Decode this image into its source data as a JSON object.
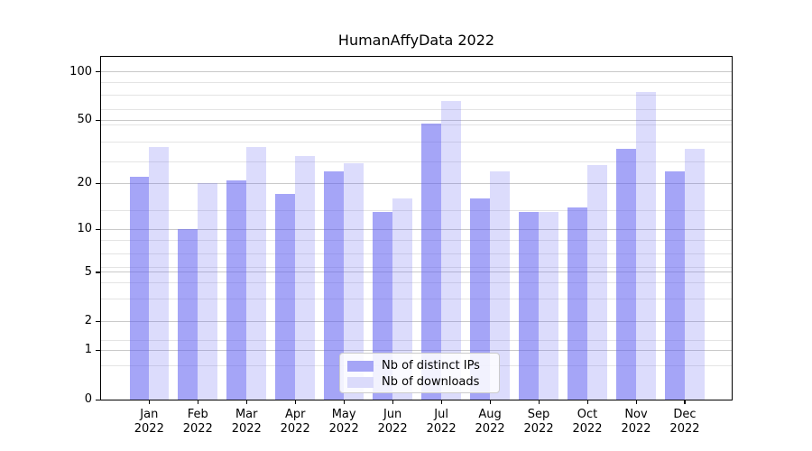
{
  "chart_data": {
    "type": "bar",
    "title": "HumanAffyData 2022",
    "x_categories": [
      "Jan",
      "Feb",
      "Mar",
      "Apr",
      "May",
      "Jun",
      "Jul",
      "Aug",
      "Sep",
      "Oct",
      "Nov",
      "Dec"
    ],
    "x_year_label": "2022",
    "series": [
      {
        "key": "distinct-ips",
        "name": "Nb of distinct IPs",
        "base_color_rgb": [
          95,
          95,
          240
        ],
        "alpha": 0.56,
        "legend_color": "#a5a5f6",
        "values": [
          22,
          10,
          21,
          17,
          24,
          13,
          48,
          16,
          13,
          14,
          33,
          24
        ]
      },
      {
        "key": "downloads",
        "name": "Nb of downloads",
        "base_color_rgb": [
          95,
          95,
          240
        ],
        "alpha": 0.22,
        "legend_color": "#dbdbfb",
        "values": [
          34,
          20,
          34,
          30,
          27,
          16,
          66,
          24,
          13,
          26,
          75,
          33
        ]
      }
    ],
    "y_scale": "log10(1+x)",
    "y_ticks": [
      0,
      1,
      2,
      5,
      10,
      20,
      50,
      100
    ],
    "y_minor_gridlines": [
      0.6,
      1.3,
      3.1,
      4.2,
      5.4,
      6.8,
      8.4,
      13.3,
      27.5,
      36.7,
      47,
      58.7,
      71.4,
      86
    ],
    "ylim": [
      0,
      123
    ],
    "grid": true,
    "legend_position": "lower center"
  }
}
